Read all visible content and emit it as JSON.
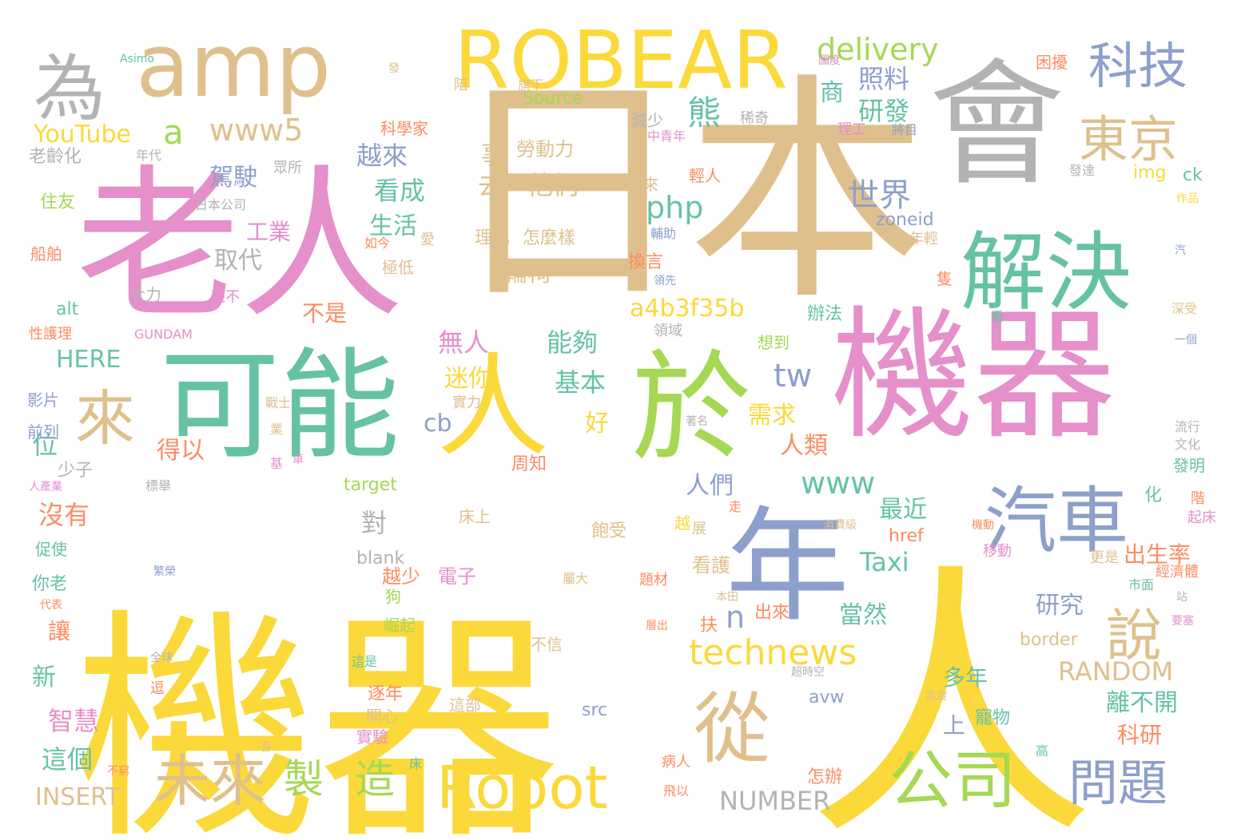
{
  "palette": {
    "yellow": "#fbd93a",
    "tan": "#dfc08d",
    "pink": "#e58fcb",
    "teal": "#66c2a5",
    "green": "#a5d854",
    "blue": "#8da0cb",
    "gray": "#b3b3b3",
    "orange": "#fc8d62"
  },
  "words": [
    {
      "text": "日本",
      "color": "tan"
    },
    {
      "text": "機器",
      "color": "yellow"
    },
    {
      "text": "人",
      "color": "yellow"
    },
    {
      "text": "老人",
      "color": "pink"
    },
    {
      "text": "機器",
      "color": "pink"
    },
    {
      "text": "會",
      "color": "gray"
    },
    {
      "text": "於",
      "color": "green"
    },
    {
      "text": "人",
      "color": "yellow"
    },
    {
      "text": "可能",
      "color": "teal"
    },
    {
      "text": "年",
      "color": "blue"
    },
    {
      "text": "amp",
      "color": "tan"
    },
    {
      "text": "ROBEAR",
      "color": "yellow"
    },
    {
      "text": "解決",
      "color": "teal"
    },
    {
      "text": "為",
      "color": "gray"
    },
    {
      "text": "從",
      "color": "tan"
    },
    {
      "text": "汽車",
      "color": "blue"
    },
    {
      "text": "公司",
      "color": "green"
    },
    {
      "text": "Robot",
      "color": "yellow"
    },
    {
      "text": "來",
      "color": "tan"
    },
    {
      "text": "未來",
      "color": "tan"
    },
    {
      "text": "說",
      "color": "tan"
    },
    {
      "text": "科技",
      "color": "blue"
    },
    {
      "text": "東京",
      "color": "tan"
    },
    {
      "text": "問題",
      "color": "blue"
    },
    {
      "text": "製",
      "color": "green"
    },
    {
      "text": "造",
      "color": "green"
    },
    {
      "text": "delivery",
      "color": "green"
    },
    {
      "text": "www5",
      "color": "tan"
    },
    {
      "text": "technews",
      "color": "yellow"
    },
    {
      "text": "www",
      "color": "teal"
    },
    {
      "text": "php",
      "color": "teal"
    },
    {
      "text": "tw",
      "color": "blue"
    },
    {
      "text": "a",
      "color": "green"
    },
    {
      "text": "n",
      "color": "blue"
    },
    {
      "text": "熊",
      "color": "teal"
    },
    {
      "text": "世界",
      "color": "blue"
    },
    {
      "text": "照料",
      "color": "blue"
    },
    {
      "text": "研發",
      "color": "teal"
    },
    {
      "text": "商",
      "color": "teal"
    },
    {
      "text": "越來",
      "color": "blue"
    },
    {
      "text": "看成",
      "color": "teal"
    },
    {
      "text": "生活",
      "color": "teal"
    },
    {
      "text": "駕駛",
      "color": "blue"
    },
    {
      "text": "工業",
      "color": "pink"
    },
    {
      "text": "取代",
      "color": "gray"
    },
    {
      "text": "a4b3f35b",
      "color": "yellow"
    },
    {
      "text": "能夠",
      "color": "teal"
    },
    {
      "text": "無人",
      "color": "pink"
    },
    {
      "text": "迷你",
      "color": "yellow"
    },
    {
      "text": "基本",
      "color": "teal"
    },
    {
      "text": "需求",
      "color": "yellow"
    },
    {
      "text": "人類",
      "color": "orange"
    },
    {
      "text": "好",
      "color": "yellow"
    },
    {
      "text": "得以",
      "color": "orange"
    },
    {
      "text": "cb",
      "color": "blue"
    },
    {
      "text": "位",
      "color": "teal"
    },
    {
      "text": "人們",
      "color": "blue"
    },
    {
      "text": "最近",
      "color": "teal"
    },
    {
      "text": "對",
      "color": "gray"
    },
    {
      "text": "沒有",
      "color": "orange"
    },
    {
      "text": "Taxi",
      "color": "teal"
    },
    {
      "text": "研究",
      "color": "blue"
    },
    {
      "text": "當然",
      "color": "teal"
    },
    {
      "text": "出生率",
      "color": "orange"
    },
    {
      "text": "RANDOM",
      "color": "tan"
    },
    {
      "text": "離不開",
      "color": "teal"
    },
    {
      "text": "科研",
      "color": "orange"
    },
    {
      "text": "多年",
      "color": "teal"
    },
    {
      "text": "上",
      "color": "blue"
    },
    {
      "text": "智慧",
      "color": "pink"
    },
    {
      "text": "這個",
      "color": "teal"
    },
    {
      "text": "新",
      "color": "teal"
    },
    {
      "text": "讓",
      "color": "orange"
    },
    {
      "text": "INSERT",
      "color": "tan"
    },
    {
      "text": "NUMBER",
      "color": "gray"
    },
    {
      "text": "YouTube",
      "color": "yellow"
    },
    {
      "text": "HERE",
      "color": "teal"
    },
    {
      "text": "不是",
      "color": "orange"
    },
    {
      "text": "事",
      "color": "tan"
    },
    {
      "text": "去",
      "color": "tan"
    },
    {
      "text": "他們",
      "color": "tan"
    },
    {
      "text": "勞動力",
      "color": "tan"
    },
    {
      "text": "輪椅",
      "color": "tan"
    },
    {
      "text": "理化",
      "color": "tan"
    },
    {
      "text": "怎麼樣",
      "color": "tan"
    },
    {
      "text": "飽受",
      "color": "tan"
    },
    {
      "text": "床上",
      "color": "tan"
    },
    {
      "text": "周知",
      "color": "orange"
    },
    {
      "text": "實力",
      "color": "tan"
    },
    {
      "text": "電子",
      "color": "pink"
    },
    {
      "text": "越少",
      "color": "orange"
    },
    {
      "text": "逐年",
      "color": "orange"
    },
    {
      "text": "開心",
      "color": "tan"
    },
    {
      "text": "實驗",
      "color": "pink"
    },
    {
      "text": "這部",
      "color": "tan"
    },
    {
      "text": "src",
      "color": "blue"
    },
    {
      "text": "看護",
      "color": "tan"
    },
    {
      "text": "出來",
      "color": "orange"
    },
    {
      "text": "扶",
      "color": "orange"
    },
    {
      "text": "怎辦",
      "color": "orange"
    },
    {
      "text": "寵物",
      "color": "teal"
    },
    {
      "text": "avw",
      "color": "blue"
    },
    {
      "text": "blank",
      "color": "gray"
    },
    {
      "text": "target",
      "color": "green"
    },
    {
      "text": "href",
      "color": "orange"
    },
    {
      "text": "border",
      "color": "tan"
    },
    {
      "text": "img",
      "color": "yellow"
    },
    {
      "text": "ck",
      "color": "teal"
    },
    {
      "text": "zoneid",
      "color": "blue"
    },
    {
      "text": "alt",
      "color": "teal"
    },
    {
      "text": "Source",
      "color": "green"
    },
    {
      "text": "Asimo",
      "color": "teal"
    },
    {
      "text": "GUNDAM",
      "color": "pink"
    },
    {
      "text": "發",
      "color": "tan"
    },
    {
      "text": "陪",
      "color": "tan"
    },
    {
      "text": "旗下",
      "color": "tan"
    },
    {
      "text": "科學家",
      "color": "orange"
    },
    {
      "text": "減少",
      "color": "gray"
    },
    {
      "text": "稀奇",
      "color": "gray"
    },
    {
      "text": "中青年",
      "color": "pink"
    },
    {
      "text": "理工",
      "color": "pink"
    },
    {
      "text": "將目",
      "color": "blue"
    },
    {
      "text": "困擾",
      "color": "orange"
    },
    {
      "text": "國度",
      "color": "pink"
    },
    {
      "text": "輕人",
      "color": "orange"
    },
    {
      "text": "以來",
      "color": "tan"
    },
    {
      "text": "年代",
      "color": "gray"
    },
    {
      "text": "老齡化",
      "color": "gray"
    },
    {
      "text": "眾所",
      "color": "gray"
    },
    {
      "text": "日本公司",
      "color": "gray"
    },
    {
      "text": "住友",
      "color": "green"
    },
    {
      "text": "船舶",
      "color": "orange"
    },
    {
      "text": "如今",
      "color": "orange"
    },
    {
      "text": "愛",
      "color": "tan"
    },
    {
      "text": "極低",
      "color": "tan"
    },
    {
      "text": "大力",
      "color": "gray"
    },
    {
      "text": "毫不",
      "color": "pink"
    },
    {
      "text": "輔助",
      "color": "blue"
    },
    {
      "text": "換言",
      "color": "orange"
    },
    {
      "text": "領先",
      "color": "blue"
    },
    {
      "text": "年輕",
      "color": "tan"
    },
    {
      "text": "隻",
      "color": "orange"
    },
    {
      "text": "辦法",
      "color": "teal"
    },
    {
      "text": "看",
      "color": "teal"
    },
    {
      "text": "深受",
      "color": "tan"
    },
    {
      "text": "一個",
      "color": "blue"
    },
    {
      "text": "性護理",
      "color": "orange"
    },
    {
      "text": "領域",
      "color": "gray"
    },
    {
      "text": "想到",
      "color": "green"
    },
    {
      "text": "影片",
      "color": "blue"
    },
    {
      "text": "前列",
      "color": "blue"
    },
    {
      "text": "少子",
      "color": "gray"
    },
    {
      "text": "戰士",
      "color": "tan"
    },
    {
      "text": "業",
      "color": "tan"
    },
    {
      "text": "著名",
      "color": "gray"
    },
    {
      "text": "基",
      "color": "pink"
    },
    {
      "text": "車",
      "color": "pink"
    },
    {
      "text": "流行",
      "color": "gray"
    },
    {
      "text": "文化",
      "color": "gray"
    },
    {
      "text": "發明",
      "color": "teal"
    },
    {
      "text": "階",
      "color": "orange"
    },
    {
      "text": "起床",
      "color": "pink"
    },
    {
      "text": "人產業",
      "color": "pink"
    },
    {
      "text": "標舉",
      "color": "gray"
    },
    {
      "text": "化",
      "color": "teal"
    },
    {
      "text": "越",
      "color": "yellow"
    },
    {
      "text": "展",
      "color": "tan"
    },
    {
      "text": "走",
      "color": "orange"
    },
    {
      "text": "消費級",
      "color": "tan"
    },
    {
      "text": "機動",
      "color": "orange"
    },
    {
      "text": "移動",
      "color": "pink"
    },
    {
      "text": "更是",
      "color": "tan"
    },
    {
      "text": "經濟體",
      "color": "orange"
    },
    {
      "text": "市面",
      "color": "teal"
    },
    {
      "text": "站",
      "color": "gray"
    },
    {
      "text": "要塞",
      "color": "pink"
    },
    {
      "text": "促使",
      "color": "teal"
    },
    {
      "text": "繁榮",
      "color": "blue"
    },
    {
      "text": "你老",
      "color": "teal"
    },
    {
      "text": "代表",
      "color": "orange"
    },
    {
      "text": "狗",
      "color": "green"
    },
    {
      "text": "屬大",
      "color": "tan"
    },
    {
      "text": "題材",
      "color": "orange"
    },
    {
      "text": "本田",
      "color": "tan"
    },
    {
      "text": "層出",
      "color": "orange"
    },
    {
      "text": "崛起",
      "color": "green"
    },
    {
      "text": "不信",
      "color": "tan"
    },
    {
      "text": "全球",
      "color": "gray"
    },
    {
      "text": "這是",
      "color": "teal"
    },
    {
      "text": "逗",
      "color": "orange"
    },
    {
      "text": "超時空",
      "color": "gray"
    },
    {
      "text": "高度",
      "color": "tan"
    },
    {
      "text": "喜",
      "color": "tan"
    },
    {
      "text": "床",
      "color": "teal"
    },
    {
      "text": "病人",
      "color": "orange"
    },
    {
      "text": "高",
      "color": "teal"
    },
    {
      "text": "不窮",
      "color": "orange"
    },
    {
      "text": "飛以",
      "color": "orange"
    },
    {
      "text": "發達",
      "color": "gray"
    },
    {
      "text": "作品",
      "color": "yellow"
    },
    {
      "text": "汽",
      "color": "blue"
    }
  ]
}
